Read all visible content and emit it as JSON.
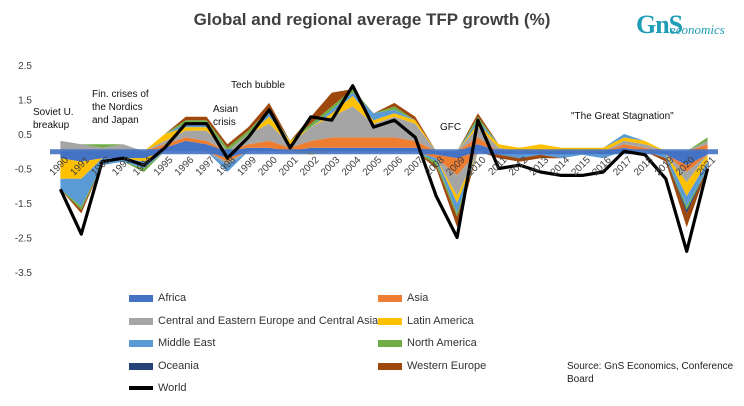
{
  "title": "Global and regional average TFP growth (%)",
  "logo": {
    "mark": "GnS",
    "word": "economics"
  },
  "source": "Source: GnS Economics, Conference Board",
  "chart_data": {
    "type": "area",
    "title": "Global and regional average TFP growth (%)",
    "xlabel": "",
    "ylabel": "",
    "ylim": [
      -3.5,
      2.5
    ],
    "yticks": [
      "2.5",
      "1.5",
      "0.5",
      "-0.5",
      "-1.5",
      "-2.5",
      "-3.5"
    ],
    "x": [
      "1990",
      "1991",
      "1992",
      "1993",
      "1994",
      "1995",
      "1996",
      "1997",
      "1998",
      "1999",
      "2000",
      "2001",
      "2002",
      "2003",
      "2004",
      "2005",
      "2006",
      "2007",
      "2008",
      "2009",
      "2010",
      "2011",
      "2012",
      "2013",
      "2014",
      "2015",
      "2016",
      "2017",
      "2018",
      "2019",
      "2020",
      "2021"
    ],
    "legend_placement": "bottom",
    "series": [
      {
        "name": "Africa",
        "color": "#4472c4",
        "values": [
          -0.2,
          -0.3,
          -0.2,
          -0.2,
          -0.2,
          0.1,
          0.3,
          0.2,
          -0.2,
          0.1,
          0.1,
          0.0,
          0.1,
          0.1,
          0.1,
          0.1,
          0.1,
          0.1,
          -0.1,
          -0.2,
          0.2,
          -0.1,
          0.0,
          -0.1,
          -0.1,
          0.0,
          -0.1,
          0.1,
          0.0,
          -0.1,
          -0.4,
          -0.1
        ]
      },
      {
        "name": "Asia",
        "color": "#ed7d31",
        "values": [
          0.0,
          0.0,
          0.0,
          0.0,
          0.0,
          0.1,
          0.1,
          0.1,
          -0.1,
          0.1,
          0.2,
          0.1,
          0.2,
          0.3,
          0.3,
          0.3,
          0.3,
          0.2,
          -0.1,
          -0.5,
          0.2,
          0.0,
          0.0,
          0.0,
          0.0,
          0.0,
          0.0,
          0.1,
          0.1,
          0.0,
          -0.2,
          0.2
        ]
      },
      {
        "name": "Central and Eastern Europe and Central Asia",
        "color": "#a5a5a5",
        "values": [
          0.3,
          0.2,
          0.1,
          0.2,
          0.0,
          0.1,
          0.2,
          0.3,
          -0.1,
          0.3,
          0.5,
          0.1,
          0.4,
          0.6,
          0.9,
          0.4,
          0.6,
          0.5,
          0.0,
          -0.6,
          0.3,
          0.1,
          0.0,
          0.0,
          0.0,
          0.0,
          0.0,
          0.1,
          0.1,
          0.0,
          -0.3,
          0.1
        ]
      },
      {
        "name": "Latin America",
        "color": "#ffc000",
        "values": [
          -0.6,
          -0.5,
          0.0,
          0.0,
          -0.1,
          0.2,
          0.1,
          0.1,
          0.0,
          0.0,
          0.2,
          0.1,
          -0.1,
          0.1,
          0.3,
          0.1,
          0.1,
          0.1,
          0.0,
          -0.2,
          0.1,
          0.1,
          0.1,
          0.2,
          0.1,
          0.1,
          0.1,
          0.1,
          0.1,
          0.0,
          -0.4,
          -0.2
        ]
      },
      {
        "name": "Middle East",
        "color": "#5b9bd5",
        "values": [
          -0.3,
          -0.8,
          -0.2,
          -0.1,
          -0.2,
          0.0,
          0.1,
          0.1,
          -0.2,
          0.0,
          0.1,
          0.0,
          0.0,
          0.1,
          0.1,
          0.2,
          0.1,
          0.0,
          -0.1,
          -0.3,
          0.1,
          0.0,
          -0.2,
          0.0,
          -0.1,
          -0.1,
          -0.1,
          0.1,
          0.0,
          -0.1,
          -0.3,
          -0.2
        ]
      },
      {
        "name": "North America",
        "color": "#70ad47",
        "values": [
          0.0,
          -0.1,
          0.1,
          0.0,
          -0.1,
          0.0,
          0.1,
          0.1,
          0.1,
          0.1,
          0.1,
          0.0,
          0.1,
          0.1,
          0.1,
          0.0,
          0.1,
          0.0,
          -0.1,
          -0.1,
          0.1,
          0.0,
          0.0,
          0.0,
          0.0,
          0.0,
          0.0,
          0.0,
          0.0,
          0.0,
          -0.1,
          0.1
        ]
      },
      {
        "name": "Oceania",
        "color": "#264478",
        "values": [
          0.0,
          0.0,
          0.0,
          0.0,
          0.0,
          0.0,
          0.0,
          0.0,
          0.0,
          0.0,
          0.0,
          0.0,
          0.0,
          0.0,
          0.0,
          0.0,
          0.0,
          0.0,
          0.0,
          0.0,
          0.0,
          0.0,
          0.0,
          0.0,
          0.0,
          0.0,
          0.0,
          0.0,
          0.0,
          0.0,
          -0.1,
          0.0
        ]
      },
      {
        "name": "Western Europe",
        "color": "#9e480e",
        "values": [
          0.0,
          -0.1,
          0.0,
          0.0,
          0.0,
          0.0,
          0.1,
          0.1,
          0.1,
          0.1,
          0.2,
          0.0,
          0.2,
          0.4,
          0.0,
          0.0,
          0.1,
          0.1,
          -0.1,
          -0.3,
          0.1,
          -0.1,
          -0.1,
          -0.1,
          0.0,
          0.0,
          0.0,
          0.0,
          0.0,
          -0.1,
          -0.4,
          0.0
        ]
      },
      {
        "name": "World",
        "color": "#000000",
        "values": [
          -1.1,
          -2.4,
          -0.3,
          -0.2,
          -0.4,
          0.1,
          0.8,
          0.8,
          -0.2,
          0.4,
          1.2,
          0.1,
          1.0,
          0.9,
          1.9,
          0.7,
          0.9,
          0.4,
          -1.3,
          -2.5,
          0.9,
          -0.5,
          -0.4,
          -0.6,
          -0.7,
          -0.7,
          -0.6,
          0.0,
          -0.1,
          -0.8,
          -2.9,
          -0.5
        ]
      }
    ]
  },
  "annotations": [
    {
      "text": "Soviet U.\nbreakup"
    },
    {
      "text": "Fin. crises of\nthe Nordics\nand Japan"
    },
    {
      "text": "Asian\ncrisis"
    },
    {
      "text": "Tech bubble"
    },
    {
      "text": "GFC"
    },
    {
      "text": "\"The Great Stagnation\""
    }
  ]
}
